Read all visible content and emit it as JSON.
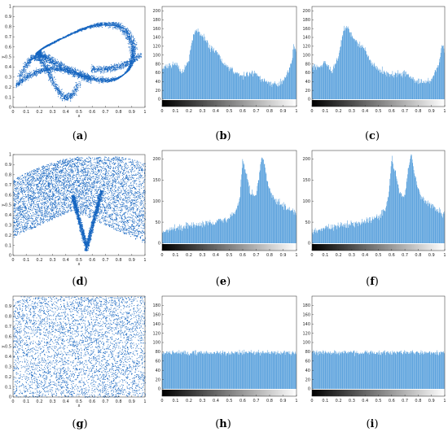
{
  "bar_color": "#3a8fd6",
  "scatter_color": "#1565c0",
  "chart_data": [
    {
      "id": "a",
      "label_open": "(",
      "label_letter": "a",
      "label_close": ")",
      "type": "scatter",
      "pattern": "loop",
      "xlabel": "x",
      "ylabel": "y",
      "xlim": [
        0,
        1
      ],
      "ylim": [
        0,
        1
      ],
      "xticks": [
        "0",
        "0.1",
        "0.2",
        "0.3",
        "0.4",
        "0.5",
        "0.6",
        "0.7",
        "0.8",
        "0.9",
        "1"
      ],
      "yticks": [
        "0",
        "0.1",
        "0.2",
        "0.3",
        "0.4",
        "0.5",
        "0.6",
        "0.7",
        "0.8",
        "0.9",
        "1"
      ]
    },
    {
      "id": "b",
      "label_open": "(",
      "label_letter": "b",
      "label_close": ")",
      "type": "bar",
      "ylim": [
        0,
        210
      ],
      "xticks": [
        "0",
        "0.1",
        "0.2",
        "0.3",
        "0.4",
        "0.5",
        "0.6",
        "0.7",
        "0.8",
        "0.9",
        "1"
      ],
      "yticks": [
        "0",
        "20",
        "40",
        "60",
        "80",
        "100",
        "120",
        "140",
        "160",
        "180",
        "200"
      ],
      "profile": {
        "x": [
          0,
          0.05,
          0.1,
          0.15,
          0.2,
          0.22,
          0.25,
          0.3,
          0.35,
          0.4,
          0.45,
          0.5,
          0.55,
          0.6,
          0.65,
          0.7,
          0.75,
          0.8,
          0.85,
          0.9,
          0.93,
          0.96,
          0.98,
          1
        ],
        "y": [
          70,
          75,
          80,
          60,
          90,
          130,
          160,
          145,
          120,
          110,
          85,
          70,
          60,
          55,
          55,
          58,
          45,
          38,
          35,
          40,
          55,
          80,
          120,
          110
        ]
      },
      "colorbar": true
    },
    {
      "id": "c",
      "label_open": "(",
      "label_letter": "c",
      "label_close": ")",
      "type": "bar",
      "ylim": [
        0,
        210
      ],
      "xticks": [
        "0",
        "0.1",
        "0.2",
        "0.3",
        "0.4",
        "0.5",
        "0.6",
        "0.7",
        "0.8",
        "0.9",
        "1"
      ],
      "yticks": [
        "0",
        "20",
        "40",
        "60",
        "80",
        "100",
        "120",
        "140",
        "160",
        "180",
        "200"
      ],
      "profile": {
        "x": [
          0,
          0.05,
          0.1,
          0.15,
          0.2,
          0.22,
          0.25,
          0.3,
          0.35,
          0.4,
          0.45,
          0.5,
          0.55,
          0.6,
          0.65,
          0.7,
          0.75,
          0.8,
          0.85,
          0.9,
          0.93,
          0.96,
          0.98,
          1
        ],
        "y": [
          75,
          72,
          85,
          62,
          95,
          135,
          165,
          148,
          125,
          112,
          82,
          68,
          62,
          55,
          58,
          60,
          48,
          40,
          38,
          45,
          60,
          85,
          125,
          112
        ]
      },
      "colorbar": true
    },
    {
      "id": "d",
      "label_open": "(",
      "label_letter": "d",
      "label_close": ")",
      "type": "scatter",
      "pattern": "fan",
      "xlabel": "x",
      "ylabel": "y",
      "xlim": [
        0,
        1
      ],
      "ylim": [
        0,
        1
      ],
      "xticks": [
        "0",
        "0.1",
        "0.2",
        "0.3",
        "0.4",
        "0.5",
        "0.6",
        "0.7",
        "0.8",
        "0.9",
        "1"
      ],
      "yticks": [
        "0",
        "0.1",
        "0.2",
        "0.3",
        "0.4",
        "0.5",
        "0.6",
        "0.7",
        "0.8",
        "0.9",
        "1"
      ]
    },
    {
      "id": "e",
      "label_open": "(",
      "label_letter": "e",
      "label_close": ")",
      "type": "bar",
      "ylim": [
        0,
        220
      ],
      "xticks": [
        "0",
        "0.1",
        "0.2",
        "0.3",
        "0.4",
        "0.5",
        "0.6",
        "0.7",
        "0.8",
        "0.9",
        "1"
      ],
      "yticks": [
        "0",
        "50",
        "100",
        "150",
        "200"
      ],
      "profile": {
        "x": [
          0,
          0.1,
          0.2,
          0.3,
          0.4,
          0.5,
          0.55,
          0.58,
          0.6,
          0.63,
          0.66,
          0.7,
          0.73,
          0.75,
          0.78,
          0.82,
          0.9,
          1
        ],
        "y": [
          25,
          35,
          40,
          45,
          50,
          60,
          75,
          110,
          200,
          160,
          120,
          110,
          180,
          210,
          150,
          110,
          90,
          70
        ]
      },
      "colorbar": true
    },
    {
      "id": "f",
      "label_open": "(",
      "label_letter": "f",
      "label_close": ")",
      "type": "bar",
      "ylim": [
        0,
        220
      ],
      "xticks": [
        "0",
        "0.1",
        "0.2",
        "0.3",
        "0.4",
        "0.5",
        "0.6",
        "0.7",
        "0.8",
        "0.9",
        "1"
      ],
      "yticks": [
        "0",
        "50",
        "100",
        "150",
        "200"
      ],
      "profile": {
        "x": [
          0,
          0.1,
          0.2,
          0.3,
          0.4,
          0.5,
          0.55,
          0.58,
          0.6,
          0.63,
          0.66,
          0.7,
          0.73,
          0.75,
          0.78,
          0.82,
          0.9,
          1
        ],
        "y": [
          28,
          36,
          42,
          46,
          52,
          62,
          78,
          115,
          205,
          165,
          118,
          112,
          185,
          210,
          155,
          108,
          88,
          68
        ]
      },
      "colorbar": true
    },
    {
      "id": "g",
      "label_open": "(",
      "label_letter": "g",
      "label_close": ")",
      "type": "scatter",
      "pattern": "uniform",
      "xlabel": "x",
      "ylabel": "y",
      "xlim": [
        0,
        1
      ],
      "ylim": [
        0,
        1
      ],
      "xticks": [
        "0",
        "0.1",
        "0.2",
        "0.3",
        "0.4",
        "0.5",
        "0.6",
        "0.7",
        "0.8",
        "0.9",
        "1"
      ],
      "yticks": [
        "0",
        "0.1",
        "0.2",
        "0.3",
        "0.4",
        "0.5",
        "0.6",
        "0.7",
        "0.8",
        "0.9"
      ]
    },
    {
      "id": "h",
      "label_open": "(",
      "label_letter": "h",
      "label_close": ")",
      "type": "bar",
      "ylim": [
        0,
        200
      ],
      "xticks": [
        "0",
        "0.1",
        "0.2",
        "0.3",
        "0.4",
        "0.5",
        "0.6",
        "0.7",
        "0.8",
        "0.9",
        "1"
      ],
      "yticks": [
        "0",
        "20",
        "40",
        "60",
        "80",
        "100",
        "120",
        "140",
        "160",
        "180"
      ],
      "profile": {
        "x": [
          0,
          1
        ],
        "y": [
          78,
          78
        ]
      },
      "colorbar": true
    },
    {
      "id": "i",
      "label_open": "(",
      "label_letter": "i",
      "label_close": ")",
      "type": "bar",
      "ylim": [
        0,
        200
      ],
      "xticks": [
        "0",
        "0.1",
        "0.2",
        "0.3",
        "0.4",
        "0.5",
        "0.6",
        "0.7",
        "0.8",
        "0.9",
        "1"
      ],
      "yticks": [
        "0",
        "20",
        "40",
        "60",
        "80",
        "100",
        "120",
        "140",
        "160",
        "180"
      ],
      "profile": {
        "x": [
          0,
          1
        ],
        "y": [
          78,
          78
        ]
      },
      "colorbar": true
    }
  ]
}
